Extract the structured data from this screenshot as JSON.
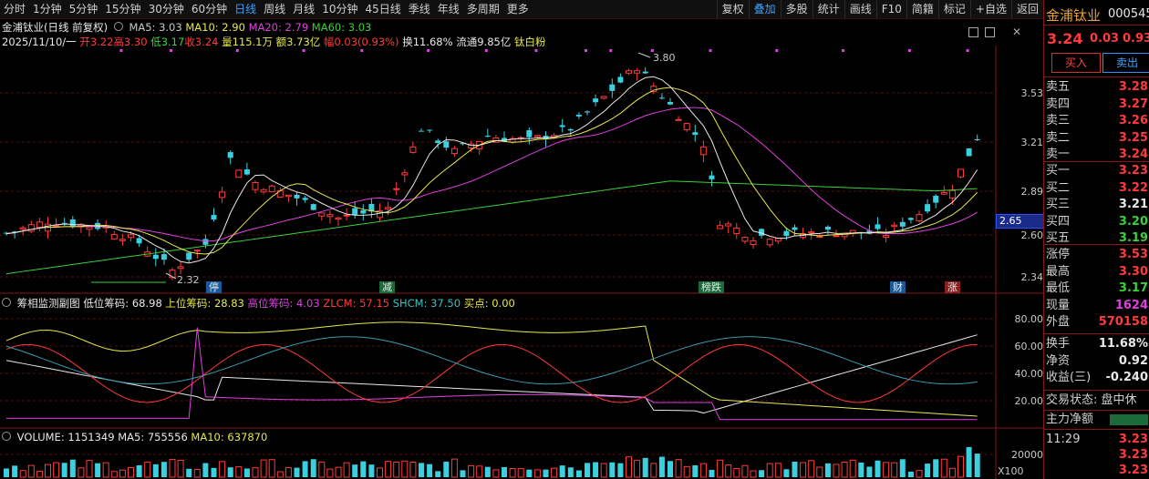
{
  "toolbar": {
    "tabs": [
      "分时",
      "1分钟",
      "5分钟",
      "15分钟",
      "30分钟",
      "60分钟",
      "日线",
      "周线",
      "月线",
      "10分钟",
      "45日线",
      "季线",
      "年线",
      "多周期",
      "更多"
    ],
    "active_tab": "日线",
    "tools": [
      "复权",
      "叠加",
      "多股",
      "统计",
      "画线",
      "F10",
      "简籍",
      "标记",
      "+自选",
      "返回"
    ],
    "active_tool": "叠加"
  },
  "info": {
    "title": "金浦钛业(日线 前复权)",
    "ma5": "MA5: 3.03",
    "ma10": "MA10: 2.90",
    "ma20": "MA20: 2.79",
    "ma60": "MA60: 3.03",
    "date": "2025/11/10/一",
    "open": "开3.22",
    "high": "高3.30",
    "low": "低3.17",
    "close": "收3.24",
    "vol": "量115.1万",
    "amt": "额3.73亿",
    "range": "幅0.03(0.93%)",
    "turnover": "换11.68%",
    "float": "流通9.85亿",
    "concept": "钛白粉"
  },
  "price_axis": [
    "3.53",
    "3.21",
    "2.89",
    "2.60",
    "2.34"
  ],
  "current_price_tag": "2.65",
  "annotations": {
    "high": "3.80",
    "low": "2.32"
  },
  "markers": [
    "停",
    "减",
    "榜跌",
    "财",
    "涨"
  ],
  "indicator": {
    "title": "筹相监测副图",
    "low_chip": "低位筹码: 68.98",
    "up_chip": "上位筹码: 28.83",
    "high_chip": "高位筹码: 4.03",
    "zlcm": "ZLCM: 57.15",
    "shcm": "SHCM: 37.50",
    "buy": "买点: 0.00",
    "axis": [
      "80.00",
      "60.00",
      "40.00",
      "20.00"
    ]
  },
  "volume": {
    "title": "VOLUME: 1151349",
    "ma5": "MA5: 755556",
    "ma10": "MA10: 637870",
    "axis": [
      "20000"
    ],
    "unit": "X100"
  },
  "side": {
    "name": "金浦钛业",
    "code": "000545",
    "price": "3.24",
    "change": "0.03",
    "pct": "0.93",
    "buy_btn": "买入",
    "sell_btn": "卖出",
    "asks": [
      {
        "label": "卖五",
        "price": "3.28"
      },
      {
        "label": "卖四",
        "price": "3.27"
      },
      {
        "label": "卖三",
        "price": "3.26"
      },
      {
        "label": "卖二",
        "price": "3.25"
      },
      {
        "label": "卖一",
        "price": "3.24"
      }
    ],
    "bids": [
      {
        "label": "买一",
        "price": "3.23"
      },
      {
        "label": "买二",
        "price": "3.22"
      },
      {
        "label": "买三",
        "price": "3.21"
      },
      {
        "label": "买四",
        "price": "3.20"
      },
      {
        "label": "买五",
        "price": "3.19"
      }
    ],
    "stats": [
      {
        "label": "涨停",
        "value": "3.53"
      },
      {
        "label": "最高",
        "value": "3.30"
      },
      {
        "label": "最低",
        "value": "3.17"
      },
      {
        "label": "现量",
        "value": "1624"
      },
      {
        "label": "外盘",
        "value": "570158"
      }
    ],
    "stats2": [
      {
        "label": "换手",
        "value": "11.68%"
      },
      {
        "label": "净资",
        "value": "0.92"
      },
      {
        "label": "收益(三)",
        "value": "-0.240"
      }
    ],
    "trade_status": "交易状态: 盘中休",
    "main_flow": "主力净额",
    "ticks": [
      {
        "time": "11:29",
        "price": "3.23"
      },
      {
        "time": "",
        "price": "3.23"
      },
      {
        "time": "",
        "price": "3.23"
      }
    ]
  },
  "colors": {
    "up": "#ff3a3a",
    "down": "#3ad0e0",
    "ma5": "#e8e8e8",
    "ma10": "#e8e84a",
    "ma20": "#e040e0",
    "ma60": "#3ad03a"
  }
}
